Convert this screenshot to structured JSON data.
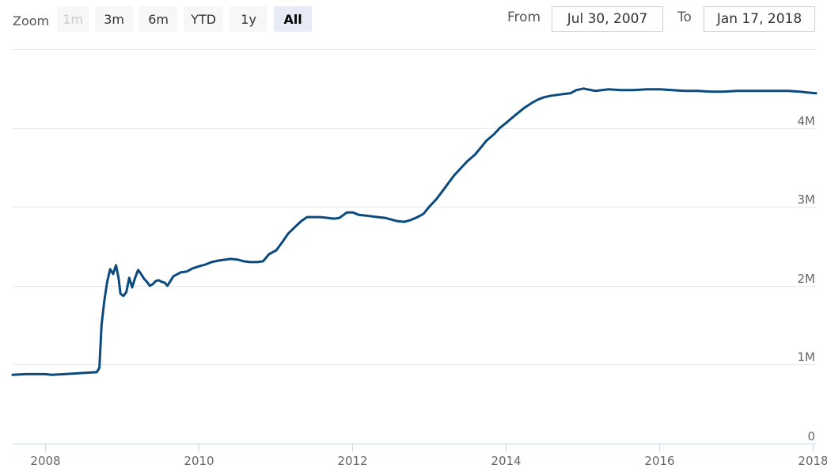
{
  "range_selector": {
    "zoom_label": "Zoom",
    "buttons": [
      {
        "label": "1m",
        "state": "disabled"
      },
      {
        "label": "3m",
        "state": "normal"
      },
      {
        "label": "6m",
        "state": "normal"
      },
      {
        "label": "YTD",
        "state": "normal"
      },
      {
        "label": "1y",
        "state": "normal"
      },
      {
        "label": "All",
        "state": "selected"
      }
    ],
    "from_label": "From",
    "from_value": "Jul 30, 2007",
    "to_label": "To",
    "to_value": "Jan 17, 2018"
  },
  "chart_data": {
    "type": "line",
    "xlabel": "",
    "ylabel": "",
    "xlim": [
      "2007-07-30",
      "2018-01-17"
    ],
    "ylim": [
      0,
      4500000
    ],
    "x_ticks": [
      "2008",
      "2010",
      "2012",
      "2014",
      "2016",
      "2018"
    ],
    "y_ticks": [
      "0",
      "1M",
      "2M",
      "3M",
      "4M"
    ],
    "grid": true,
    "legend": "none",
    "line_color": "#0b4a7f",
    "series": [
      {
        "x": [
          "2007-07-30",
          "2007-10-01",
          "2008-01-01",
          "2008-02-01",
          "2008-04-01",
          "2008-06-01",
          "2008-08-01",
          "2008-09-03",
          "2008-09-15",
          "2008-09-25",
          "2008-10-08",
          "2008-10-22",
          "2008-11-05",
          "2008-11-19",
          "2008-12-03",
          "2008-12-15",
          "2008-12-24",
          "2009-01-07",
          "2009-01-21",
          "2009-02-04",
          "2009-02-18",
          "2009-03-04",
          "2009-03-18",
          "2009-04-01",
          "2009-04-15",
          "2009-04-29",
          "2009-05-13",
          "2009-05-27",
          "2009-06-10",
          "2009-06-24",
          "2009-07-08",
          "2009-07-22",
          "2009-08-05",
          "2009-09-02",
          "2009-10-07",
          "2009-11-04",
          "2009-12-02",
          "2010-01-06",
          "2010-02-03",
          "2010-03-03",
          "2010-04-07",
          "2010-05-05",
          "2010-06-02",
          "2010-07-07",
          "2010-08-04",
          "2010-09-01",
          "2010-10-06",
          "2010-11-03",
          "2010-12-01",
          "2011-01-05",
          "2011-02-02",
          "2011-03-02",
          "2011-04-06",
          "2011-05-04",
          "2011-06-01",
          "2011-07-06",
          "2011-08-03",
          "2011-09-07",
          "2011-10-05",
          "2011-11-02",
          "2011-12-07",
          "2012-01-04",
          "2012-02-01",
          "2012-03-07",
          "2012-04-04",
          "2012-05-02",
          "2012-06-06",
          "2012-07-04",
          "2012-08-01",
          "2012-09-05",
          "2012-10-03",
          "2012-11-07",
          "2012-12-05",
          "2013-01-02",
          "2013-02-06",
          "2013-03-06",
          "2013-04-03",
          "2013-05-01",
          "2013-06-05",
          "2013-07-03",
          "2013-08-07",
          "2013-09-04",
          "2013-10-02",
          "2013-11-06",
          "2013-12-04",
          "2014-01-01",
          "2014-02-05",
          "2014-03-05",
          "2014-04-02",
          "2014-05-07",
          "2014-06-04",
          "2014-07-02",
          "2014-08-06",
          "2014-09-03",
          "2014-10-01",
          "2014-11-05",
          "2014-12-03",
          "2015-01-07",
          "2015-03-04",
          "2015-05-06",
          "2015-07-01",
          "2015-09-02",
          "2015-11-04",
          "2016-01-06",
          "2016-03-02",
          "2016-05-04",
          "2016-07-06",
          "2016-09-07",
          "2016-11-02",
          "2017-01-04",
          "2017-03-01",
          "2017-05-03",
          "2017-07-05",
          "2017-09-06",
          "2017-11-01",
          "2018-01-17"
        ],
        "values": [
          870000,
          880000,
          880000,
          870000,
          880000,
          890000,
          900000,
          905000,
          960000,
          1500000,
          1800000,
          2050000,
          2210000,
          2150000,
          2260000,
          2100000,
          1900000,
          1870000,
          1920000,
          2100000,
          1980000,
          2100000,
          2200000,
          2150000,
          2090000,
          2050000,
          2000000,
          2020000,
          2060000,
          2070000,
          2050000,
          2040000,
          2000000,
          2120000,
          2170000,
          2180000,
          2220000,
          2250000,
          2270000,
          2300000,
          2320000,
          2330000,
          2340000,
          2330000,
          2310000,
          2300000,
          2300000,
          2310000,
          2400000,
          2450000,
          2550000,
          2660000,
          2750000,
          2820000,
          2870000,
          2870000,
          2870000,
          2860000,
          2850000,
          2860000,
          2930000,
          2930000,
          2900000,
          2890000,
          2880000,
          2870000,
          2860000,
          2840000,
          2820000,
          2810000,
          2830000,
          2870000,
          2910000,
          3000000,
          3100000,
          3200000,
          3300000,
          3400000,
          3500000,
          3580000,
          3660000,
          3750000,
          3840000,
          3920000,
          4000000,
          4060000,
          4140000,
          4200000,
          4260000,
          4320000,
          4360000,
          4390000,
          4410000,
          4420000,
          4430000,
          4440000,
          4480000,
          4500000,
          4470000,
          4490000,
          4480000,
          4480000,
          4490000,
          4490000,
          4480000,
          4470000,
          4470000,
          4460000,
          4460000,
          4470000,
          4470000,
          4470000,
          4470000,
          4470000,
          4460000,
          4440000
        ]
      }
    ]
  }
}
